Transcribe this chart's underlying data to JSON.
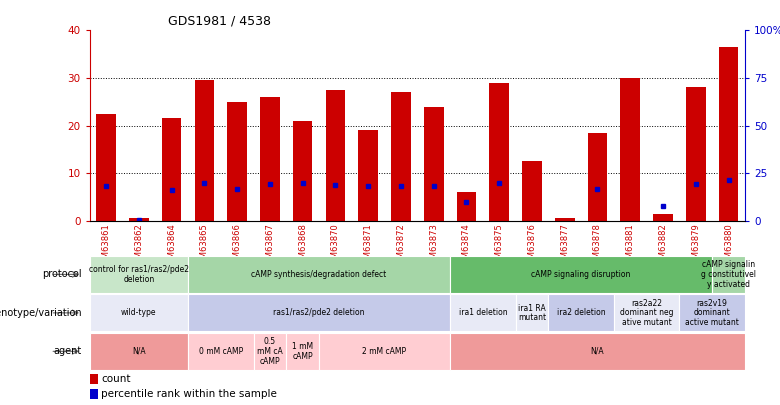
{
  "title": "GDS1981 / 4538",
  "samples": [
    "GSM63861",
    "GSM63862",
    "GSM63864",
    "GSM63865",
    "GSM63866",
    "GSM63867",
    "GSM63868",
    "GSM63870",
    "GSM63871",
    "GSM63872",
    "GSM63873",
    "GSM63874",
    "GSM63875",
    "GSM63876",
    "GSM63877",
    "GSM63878",
    "GSM63881",
    "GSM63882",
    "GSM63879",
    "GSM63880"
  ],
  "counts": [
    22.5,
    0.5,
    21.5,
    29.5,
    25.0,
    26.0,
    21.0,
    27.5,
    19.0,
    27.0,
    24.0,
    6.0,
    29.0,
    12.5,
    0.5,
    18.5,
    30.0,
    1.5,
    28.0,
    36.5
  ],
  "percentiles": [
    18.0,
    0.5,
    16.0,
    20.0,
    16.5,
    19.5,
    20.0,
    19.0,
    18.5,
    18.5,
    18.5,
    10.0,
    20.0,
    null,
    null,
    16.5,
    null,
    7.5,
    19.5,
    21.5
  ],
  "ylim_left": [
    0,
    40
  ],
  "ylim_right": [
    0,
    100
  ],
  "yticks_left": [
    0,
    10,
    20,
    30,
    40
  ],
  "yticks_right": [
    0,
    25,
    50,
    75,
    100
  ],
  "bar_color": "#cc0000",
  "dot_color": "#0000cc",
  "protocol_rows": [
    {
      "label": "control for ras1/ras2/pde2\ndeletion",
      "start": 0,
      "end": 3,
      "color": "#c8e6c9"
    },
    {
      "label": "cAMP synthesis/degradation defect",
      "start": 3,
      "end": 11,
      "color": "#a5d6a7"
    },
    {
      "label": "cAMP signaling disruption",
      "start": 11,
      "end": 19,
      "color": "#66bb6a"
    },
    {
      "label": "cAMP signalin\ng constitutivel\ny activated",
      "start": 19,
      "end": 20,
      "color": "#a5d6a7"
    }
  ],
  "genotype_rows": [
    {
      "label": "wild-type",
      "start": 0,
      "end": 3,
      "color": "#e8eaf6"
    },
    {
      "label": "ras1/ras2/pde2 deletion",
      "start": 3,
      "end": 11,
      "color": "#c5cae9"
    },
    {
      "label": "ira1 deletion",
      "start": 11,
      "end": 13,
      "color": "#e8eaf6"
    },
    {
      "label": "ira1 RA\nmutant",
      "start": 13,
      "end": 14,
      "color": "#e8eaf6"
    },
    {
      "label": "ira2 deletion",
      "start": 14,
      "end": 16,
      "color": "#c5cae9"
    },
    {
      "label": "ras2a22\ndominant neg\native mutant",
      "start": 16,
      "end": 18,
      "color": "#e8eaf6"
    },
    {
      "label": "ras2v19\ndominant\nactive mutant",
      "start": 18,
      "end": 20,
      "color": "#c5cae9"
    }
  ],
  "agent_rows": [
    {
      "label": "N/A",
      "start": 0,
      "end": 3,
      "color": "#ef9a9a"
    },
    {
      "label": "0 mM cAMP",
      "start": 3,
      "end": 5,
      "color": "#ffcdd2"
    },
    {
      "label": "0.5\nmM cA\ncAMP",
      "start": 5,
      "end": 6,
      "color": "#ffcdd2"
    },
    {
      "label": "1 mM\ncAMP",
      "start": 6,
      "end": 7,
      "color": "#ffcdd2"
    },
    {
      "label": "2 mM cAMP",
      "start": 7,
      "end": 11,
      "color": "#ffcdd2"
    },
    {
      "label": "N/A",
      "start": 11,
      "end": 20,
      "color": "#ef9a9a"
    }
  ],
  "row_labels": [
    "protocol",
    "genotype/variation",
    "agent"
  ],
  "bg_color": "#ffffff"
}
